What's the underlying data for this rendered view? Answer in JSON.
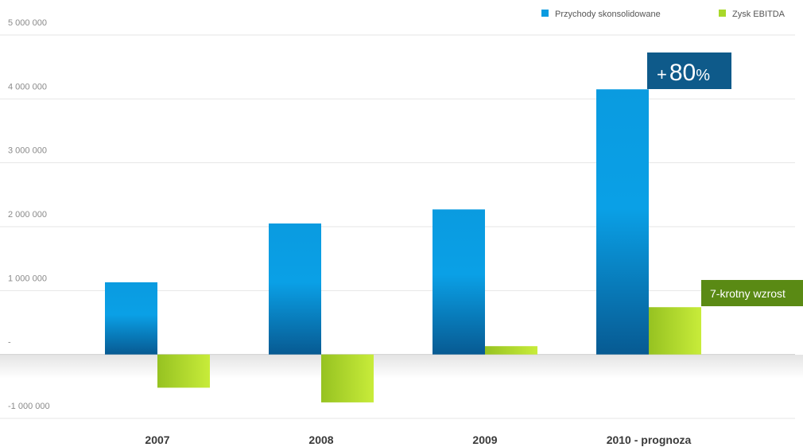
{
  "chart_data": {
    "type": "bar",
    "categories": [
      "2007",
      "2008",
      "2009",
      "2010 - prognoza"
    ],
    "series": [
      {
        "name": "Przychody skonsolidowane",
        "color": "#0a9be0",
        "values": [
          1130000,
          2050000,
          2270000,
          4150000
        ]
      },
      {
        "name": "Zysk EBITDA",
        "color": "#a8d82a",
        "values": [
          -520000,
          -750000,
          130000,
          740000
        ]
      }
    ],
    "yticks": [
      {
        "value": 5000000,
        "label": "5 000 000"
      },
      {
        "value": 4000000,
        "label": "4 000 000"
      },
      {
        "value": 3000000,
        "label": "3 000 000"
      },
      {
        "value": 2000000,
        "label": "2 000 000"
      },
      {
        "value": 1000000,
        "label": "1 000 000"
      },
      {
        "value": 0,
        "label": "-"
      },
      {
        "value": -1000000,
        "label": "-1 000 000"
      }
    ],
    "ylim": [
      -1000000,
      5000000
    ],
    "grid": true,
    "legend": "top-right",
    "annotations": [
      {
        "prefix": "+",
        "text": "80",
        "suffix": "%",
        "color": "#0e5a8a"
      },
      {
        "text": "7-krotny wzrost",
        "color": "#5a8a14"
      }
    ]
  }
}
